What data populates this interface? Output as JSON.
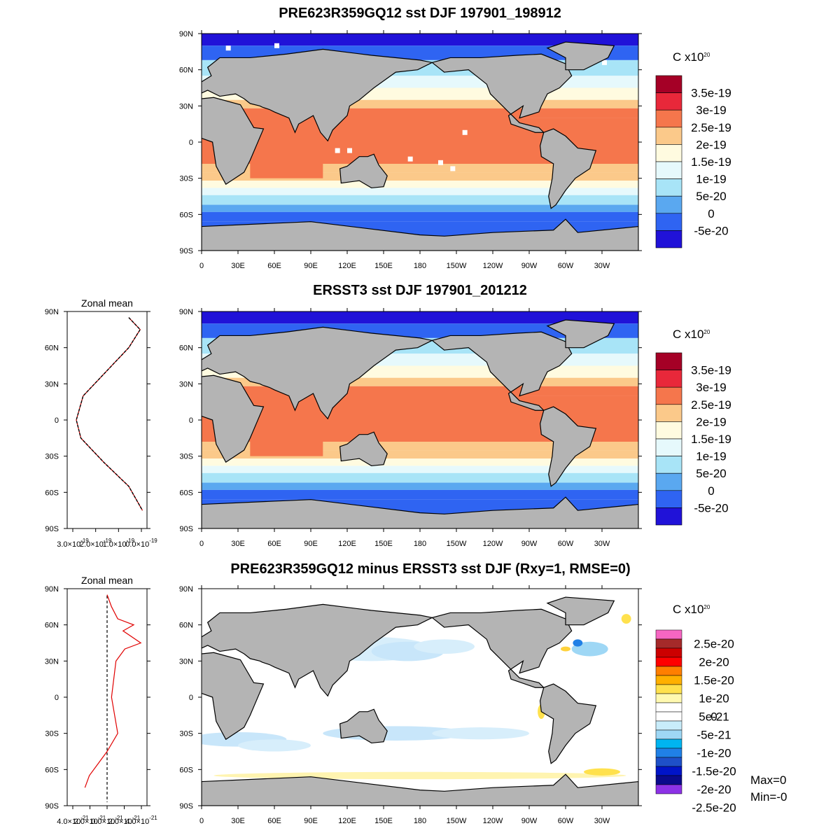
{
  "panels": [
    {
      "title": "PRE623R359GQ12 sst DJF 197901_198912",
      "units": "C x10",
      "units_exp": "20"
    },
    {
      "title": "ERSST3 sst DJF 197901_201212",
      "units": "C x10",
      "units_exp": "20"
    },
    {
      "title": "PRE623R359GQ12 minus ERSST3 sst DJF (Rxy=1, RMSE=0)",
      "units": "C x10",
      "units_exp": "20"
    }
  ],
  "axes": {
    "lon_ticks": [
      "0",
      "30E",
      "60E",
      "90E",
      "120E",
      "150E",
      "180",
      "150W",
      "120W",
      "90W",
      "60W",
      "30W"
    ],
    "lat_ticks": [
      "90N",
      "60N",
      "30N",
      "0",
      "30S",
      "60S",
      "90S"
    ]
  },
  "zonal_mean": {
    "title": "Zonal mean",
    "mean_xticks": [
      "3.0×10",
      "2.0×10",
      "1.0×10",
      "0.0×10"
    ],
    "mean_xticks_exp": "-19",
    "diff_xticks": [
      "4.0×10",
      "2.0×10",
      "0.0×10",
      "2.0×10",
      "4.0×10"
    ],
    "diff_xticks_exp": "-21"
  },
  "colorbar_mean": {
    "labels": [
      "3.5e-19",
      "3e-19",
      "2.5e-19",
      "2e-19",
      "1.5e-19",
      "1e-19",
      "5e-20",
      "0",
      "-5e-20"
    ],
    "colors": [
      "#a50026",
      "#e8283a",
      "#f5764c",
      "#fbc98a",
      "#fffbe0",
      "#e6f9fc",
      "#a8e4f7",
      "#5aa8f0",
      "#2f64f2",
      "#2012d8"
    ]
  },
  "colorbar_diff": {
    "labels": [
      "2.5e-20",
      "2e-20",
      "1.5e-20",
      "1e-20",
      "5e-21",
      "0",
      "-5e-21",
      "-1e-20",
      "-1.5e-20",
      "-2e-20",
      "-2.5e-20"
    ],
    "colors": [
      "#f666c2",
      "#a52a2a",
      "#cc0000",
      "#ff0000",
      "#ff7f00",
      "#ffb000",
      "#ffe14d",
      "#fff9b0",
      "#ffffff",
      "#ffffff",
      "#c8ecfa",
      "#9ed7f5",
      "#00b4f0",
      "#2080e6",
      "#1e50c8",
      "#0014c8",
      "#0a0a8c",
      "#8c32e6"
    ]
  },
  "stats": {
    "max": "Max=0",
    "min": "Min=-0"
  },
  "chart_data": [
    {
      "type": "heatmap",
      "title": "PRE623R359GQ12 sst DJF 197901_198912",
      "xlabel": "",
      "ylabel": "",
      "x_range": [
        0,
        360
      ],
      "y_range": [
        -90,
        90
      ],
      "levels": [
        -5e-20,
        0,
        5e-20,
        1e-19,
        1.5e-19,
        2e-19,
        2.5e-19,
        3e-19,
        3.5e-19
      ],
      "zonal_band_levels": [
        {
          "lat": 80,
          "level": 0
        },
        {
          "lat": 60,
          "level": 1.5e-19
        },
        {
          "lat": 30,
          "level": 2e-19
        },
        {
          "lat": 0,
          "level": 2.5e-19
        },
        {
          "lat": -30,
          "level": 2e-19
        },
        {
          "lat": -45,
          "level": 1e-19
        },
        {
          "lat": -60,
          "level": 0
        },
        {
          "lat": -70,
          "level": -5e-20
        }
      ]
    },
    {
      "type": "heatmap",
      "title": "ERSST3 sst DJF 197901_201212",
      "xlabel": "",
      "ylabel": "",
      "x_range": [
        0,
        360
      ],
      "y_range": [
        -90,
        90
      ],
      "levels": [
        -5e-20,
        0,
        5e-20,
        1e-19,
        1.5e-19,
        2e-19,
        2.5e-19,
        3e-19,
        3.5e-19
      ]
    },
    {
      "type": "heatmap",
      "title": "PRE623R359GQ12 minus ERSST3 sst DJF (Rxy=1, RMSE=0)",
      "xlabel": "",
      "ylabel": "",
      "x_range": [
        0,
        360
      ],
      "y_range": [
        -90,
        90
      ],
      "levels": [
        -2.5e-20,
        -2e-20,
        -1.5e-20,
        -1e-20,
        -5e-21,
        0,
        5e-21,
        1e-20,
        1.5e-20,
        2e-20,
        2.5e-20
      ]
    },
    {
      "type": "line",
      "title": "Zonal mean",
      "series": [
        {
          "x": [
            5e-20,
            0,
            5e-20,
            1.5e-19,
            2.5e-19,
            2.8e-19,
            2.6e-19,
            1.6e-19,
            5e-20,
            -1e-20
          ],
          "y": [
            85,
            75,
            60,
            40,
            20,
            0,
            -15,
            -35,
            -55,
            -75
          ]
        }
      ],
      "ylim": [
        -90,
        90
      ]
    },
    {
      "type": "line",
      "title": "Zonal mean",
      "series": [
        {
          "x": [
            0,
            5e-22,
            1.2e-21,
            3e-21,
            1.8e-21,
            3.8e-21,
            2e-21,
            1e-21,
            5e-22,
            1.2e-21,
            0,
            -1e-21,
            -2e-21,
            -2.5e-21
          ],
          "y": [
            85,
            75,
            65,
            60,
            55,
            45,
            40,
            30,
            0,
            -30,
            -45,
            -55,
            -65,
            -75
          ]
        }
      ],
      "ylim": [
        -90,
        90
      ]
    }
  ]
}
